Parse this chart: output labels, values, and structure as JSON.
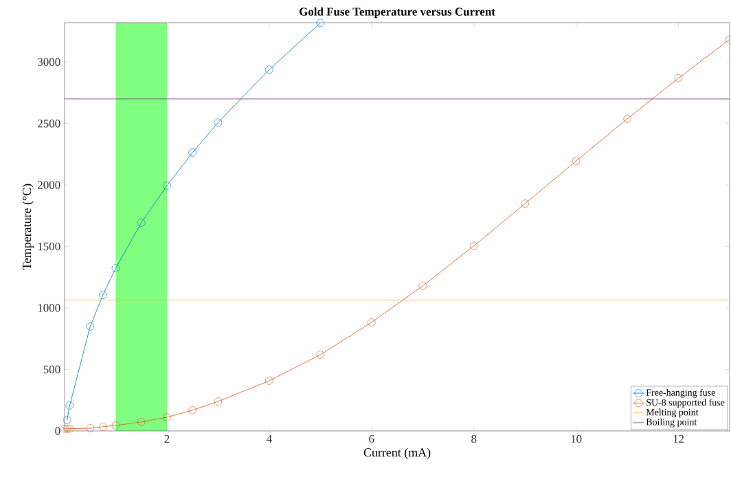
{
  "chart_data": {
    "type": "line",
    "title": "Gold Fuse Temperature versus Current",
    "xlabel": "Current (mA)",
    "ylabel": "Temperature (°C)",
    "xlim": [
      0,
      13
    ],
    "ylim": [
      0,
      3320
    ],
    "xticks": [
      2,
      4,
      6,
      8,
      10,
      12
    ],
    "yticks": [
      0,
      500,
      1000,
      1500,
      2000,
      2500,
      3000
    ],
    "marker": "circle",
    "line_style": "solid",
    "legend": "bottom right",
    "grid": false,
    "series": [
      {
        "name": "Free-hanging fuse",
        "color": "#0072bd",
        "x": [
          0.05,
          0.1,
          0.5,
          0.75,
          1,
          1.5,
          2,
          2.5,
          3,
          4,
          5
        ],
        "values": [
          89,
          207,
          849,
          1106,
          1324,
          1693,
          1994,
          2263,
          2508,
          2938,
          3318
        ]
      },
      {
        "name": "SU-8 supported fuse",
        "color": "#d95319",
        "x": [
          0,
          0.05,
          0.1,
          0.5,
          0.75,
          1,
          1.5,
          2,
          2.5,
          3,
          4,
          5,
          6,
          7,
          8,
          9,
          10,
          11,
          12,
          13
        ],
        "values": [
          18,
          18,
          19,
          22,
          34,
          45,
          73,
          112,
          168,
          240,
          408,
          620,
          883,
          1179,
          1505,
          1849,
          2196,
          2538,
          2869,
          3184
        ]
      }
    ],
    "ref_lines": [
      {
        "axis": "y",
        "value": 1064,
        "label": "Melting point",
        "color": "#edb120"
      },
      {
        "axis": "y",
        "value": 2700,
        "label": "Boiling point",
        "color": "#7e2f8e"
      }
    ],
    "bands": [
      {
        "axis": "x",
        "from": 1,
        "to": 2,
        "color": "#80ff80"
      }
    ]
  }
}
